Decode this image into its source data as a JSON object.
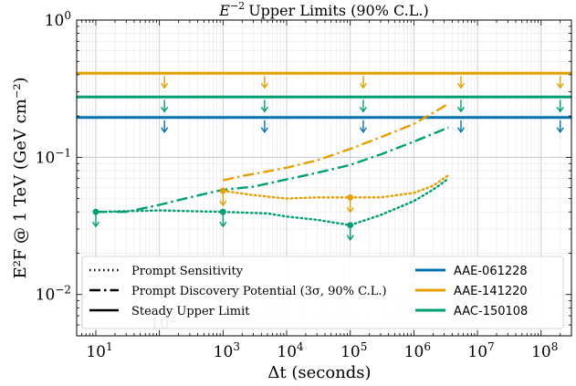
{
  "chart_data": {
    "type": "line",
    "title": "E^{-2} Upper Limits (90% C.L.)",
    "title_text": {
      "main": "Upper Limits (90% C.L.)",
      "prefix": "E",
      "sup": "−2"
    },
    "xlabel": "Δt (seconds)",
    "ylabel": "E²F @ 1 TeV (GeV cm⁻²)",
    "xscale": "log",
    "yscale": "log",
    "xlim": [
      5,
      300000000
    ],
    "ylim": [
      0.005,
      1
    ],
    "grid": true,
    "x_ticks": [
      {
        "value": 10,
        "base": "10",
        "exp": "1"
      },
      {
        "value": 1000,
        "base": "10",
        "exp": "3"
      },
      {
        "value": 10000,
        "base": "10",
        "exp": "4"
      },
      {
        "value": 100000,
        "base": "10",
        "exp": "5"
      },
      {
        "value": 1000000,
        "base": "10",
        "exp": "6"
      },
      {
        "value": 10000000,
        "base": "10",
        "exp": "7"
      },
      {
        "value": 100000000,
        "base": "10",
        "exp": "8"
      }
    ],
    "x_extra_tick": {
      "value": 100,
      "base": "10",
      "exp": "2"
    },
    "y_ticks": [
      {
        "value": 1,
        "base": "10",
        "exp": "0"
      },
      {
        "value": 0.1,
        "base": "10",
        "exp": "−1"
      },
      {
        "value": 0.01,
        "base": "10",
        "exp": "−2"
      }
    ],
    "colors": {
      "AAE-061228": "#0072b2",
      "AAE-141220": "#e69f00",
      "AAC-150108": "#009e73"
    },
    "series": [
      {
        "name": "AAE-061228",
        "kind": "steady",
        "color": "#0072b2",
        "x": [
          5,
          300000000
        ],
        "y": [
          0.195,
          0.195
        ],
        "arrows_x": [
          120,
          4500,
          160000,
          5500000,
          200000000
        ]
      },
      {
        "name": "AAE-141220",
        "kind": "steady",
        "color": "#e69f00",
        "x": [
          5,
          300000000
        ],
        "y": [
          0.41,
          0.41
        ],
        "arrows_x": [
          120,
          4500,
          160000,
          5500000,
          200000000
        ]
      },
      {
        "name": "AAC-150108",
        "kind": "steady",
        "color": "#009e73",
        "x": [
          5,
          300000000
        ],
        "y": [
          0.275,
          0.275
        ],
        "arrows_x": [
          120,
          4500,
          160000,
          5500000,
          200000000
        ]
      },
      {
        "name": "AAE-141220",
        "kind": "discovery",
        "color": "#e69f00",
        "x": [
          1000,
          2000,
          5000,
          10000,
          30000,
          100000,
          300000,
          1000000,
          3500000
        ],
        "y": [
          0.068,
          0.073,
          0.079,
          0.084,
          0.095,
          0.115,
          0.14,
          0.175,
          0.245
        ]
      },
      {
        "name": "AAC-150108",
        "kind": "discovery",
        "color": "#009e73",
        "x": [
          10,
          30,
          100,
          300,
          1000,
          3000,
          10000,
          30000,
          100000,
          300000,
          1000000,
          3500000
        ],
        "y": [
          0.04,
          0.04,
          0.045,
          0.051,
          0.058,
          0.061,
          0.069,
          0.077,
          0.088,
          0.105,
          0.13,
          0.165
        ]
      },
      {
        "name": "AAE-141220",
        "kind": "prompt",
        "color": "#e69f00",
        "x": [
          1000,
          3000,
          10000,
          30000,
          100000,
          300000,
          1000000,
          2000000,
          3500000
        ],
        "y": [
          0.057,
          0.053,
          0.05,
          0.051,
          0.051,
          0.051,
          0.055,
          0.062,
          0.074
        ]
      },
      {
        "name": "AAC-150108",
        "kind": "prompt",
        "color": "#009e73",
        "x": [
          10,
          100,
          1000,
          5000,
          10000,
          30000,
          100000,
          300000,
          1000000,
          2000000,
          3500000
        ],
        "y": [
          0.04,
          0.041,
          0.04,
          0.039,
          0.037,
          0.035,
          0.032,
          0.038,
          0.048,
          0.058,
          0.07
        ]
      }
    ],
    "markers": [
      {
        "color": "#e69f00",
        "x": 1000,
        "y": 0.057
      },
      {
        "color": "#e69f00",
        "x": 100000,
        "y": 0.051
      },
      {
        "color": "#009e73",
        "x": 10,
        "y": 0.04
      },
      {
        "color": "#009e73",
        "x": 1000,
        "y": 0.04
      },
      {
        "color": "#009e73",
        "x": 100000,
        "y": 0.032
      }
    ],
    "legend": {
      "placement": "lower center",
      "style_entries": [
        {
          "label": "Prompt Sensitivity",
          "style": "dotted"
        },
        {
          "label": "Prompt Discovery Potential (3σ, 90% C.L.)",
          "style": "dashdot"
        },
        {
          "label": "Steady Upper Limit",
          "style": "solid"
        }
      ],
      "color_entries": [
        {
          "label": "AAE-061228",
          "color": "#0072b2"
        },
        {
          "label": "AAE-141220",
          "color": "#e69f00"
        },
        {
          "label": "AAC-150108",
          "color": "#009e73"
        }
      ]
    }
  }
}
